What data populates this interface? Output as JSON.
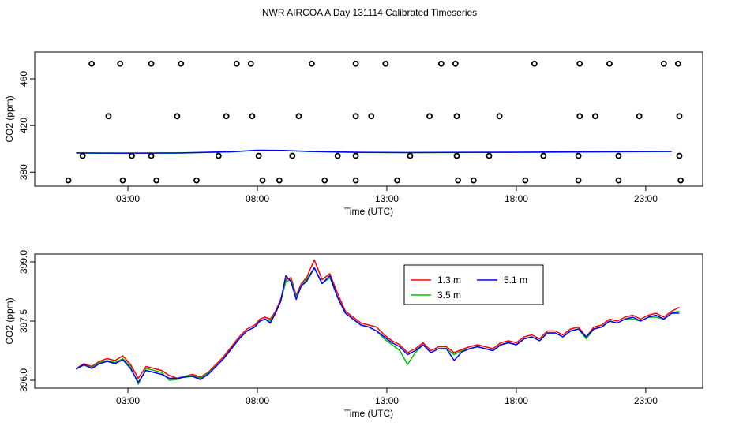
{
  "title": "NWR AIRCOA A  Day 131114  Calibrated Timeseries",
  "chart_data": [
    {
      "type": "scatter",
      "xlabel": "Time (UTC)",
      "ylabel": "CO2 (ppm)",
      "xlim": [
        -0.6,
        25.2
      ],
      "ylim": [
        368,
        483
      ],
      "x_ticks": [
        3,
        8,
        13,
        18,
        23
      ],
      "x_tick_labels": [
        "03:00",
        "08:00",
        "13:00",
        "18:00",
        "23:00"
      ],
      "y_ticks": [
        380,
        420,
        460
      ],
      "y_tick_labels": [
        "380",
        "420",
        "460"
      ],
      "grid": false,
      "scatter_points": {
        "x": [
          1.6,
          2.7,
          3.9,
          5.05,
          7.2,
          7.75,
          10.1,
          11.8,
          12.95,
          15.1,
          15.65,
          18.7,
          20.45,
          21.6,
          23.7,
          24.25,
          2.25,
          4.9,
          6.8,
          7.8,
          9.6,
          11.8,
          12.4,
          14.65,
          15.7,
          17.35,
          20.45,
          21.05,
          22.75,
          24.3,
          1.25,
          3.15,
          3.9,
          6.5,
          8.05,
          9.35,
          11.1,
          11.8,
          13.9,
          15.7,
          16.95,
          19.05,
          20.4,
          21.95,
          24.3,
          0.7,
          2.8,
          4.1,
          5.65,
          8.2,
          8.85,
          10.6,
          11.8,
          13.4,
          15.75,
          16.35,
          18.35,
          20.4,
          21.95,
          24.35
        ],
        "y": [
          473,
          473,
          473,
          473,
          473,
          473,
          473,
          473,
          473,
          473,
          473,
          473,
          473,
          473,
          473,
          473,
          428,
          428,
          428,
          428,
          428,
          428,
          428,
          428,
          428,
          428,
          428,
          428,
          428,
          428,
          394,
          394,
          394,
          394,
          394,
          394,
          394,
          394,
          394,
          394,
          394,
          394,
          394,
          394,
          394,
          373,
          373,
          373,
          373,
          373,
          373,
          373,
          373,
          373,
          373,
          373,
          373,
          373,
          373,
          373
        ]
      },
      "line_series": {
        "x": [
          1,
          3,
          5,
          7,
          8,
          9,
          10,
          12,
          14,
          16,
          18,
          20,
          22,
          24
        ],
        "y": [
          396.5,
          396.3,
          396.5,
          397.5,
          398.8,
          398.6,
          397.8,
          397.0,
          396.8,
          397.0,
          397.1,
          397.3,
          397.6,
          397.8
        ]
      }
    },
    {
      "type": "line",
      "xlabel": "Time (UTC)",
      "ylabel": "CO2 (ppm)",
      "xlim": [
        -0.6,
        25.2
      ],
      "ylim": [
        395.8,
        399.2
      ],
      "x_ticks": [
        3,
        8,
        13,
        18,
        23
      ],
      "x_tick_labels": [
        "03:00",
        "08:00",
        "13:00",
        "18:00",
        "23:00"
      ],
      "y_ticks": [
        396.0,
        397.5,
        399.0
      ],
      "y_tick_labels": [
        "396.0",
        "397.5",
        "399.0"
      ],
      "grid": false,
      "legend": "top-center",
      "x": [
        1.0,
        1.3,
        1.6,
        1.9,
        2.2,
        2.5,
        2.8,
        3.1,
        3.4,
        3.7,
        4.0,
        4.3,
        4.6,
        4.9,
        5.2,
        5.5,
        5.8,
        6.1,
        6.4,
        6.7,
        7.0,
        7.3,
        7.6,
        7.9,
        8.1,
        8.3,
        8.5,
        8.7,
        8.9,
        9.1,
        9.3,
        9.5,
        9.7,
        9.9,
        10.2,
        10.5,
        10.8,
        11.1,
        11.4,
        11.7,
        12.0,
        12.3,
        12.6,
        12.9,
        13.2,
        13.5,
        13.8,
        14.1,
        14.4,
        14.7,
        15.0,
        15.3,
        15.6,
        15.9,
        16.2,
        16.5,
        16.8,
        17.1,
        17.4,
        17.7,
        18.0,
        18.3,
        18.6,
        18.9,
        19.2,
        19.5,
        19.8,
        20.1,
        20.4,
        20.7,
        21.0,
        21.3,
        21.6,
        21.9,
        22.2,
        22.5,
        22.8,
        23.1,
        23.4,
        23.7,
        24.0,
        24.3
      ],
      "series": [
        {
          "name": "1.3 m",
          "color": "#ff0000",
          "values": [
            396.3,
            396.42,
            396.35,
            396.48,
            396.55,
            396.5,
            396.62,
            396.4,
            396.05,
            396.35,
            396.3,
            396.25,
            396.12,
            396.05,
            396.1,
            396.15,
            396.08,
            396.2,
            396.4,
            396.6,
            396.85,
            397.1,
            397.3,
            397.4,
            397.55,
            397.6,
            397.55,
            397.75,
            398.05,
            398.55,
            398.6,
            398.15,
            398.45,
            398.6,
            399.05,
            398.55,
            398.7,
            398.2,
            397.75,
            397.6,
            397.45,
            397.4,
            397.35,
            397.15,
            397.0,
            396.9,
            396.7,
            396.8,
            396.95,
            396.75,
            396.85,
            396.85,
            396.7,
            396.78,
            396.85,
            396.9,
            396.85,
            396.8,
            396.95,
            397.0,
            396.95,
            397.1,
            397.15,
            397.05,
            397.25,
            397.25,
            397.15,
            397.3,
            397.35,
            397.1,
            397.35,
            397.4,
            397.55,
            397.5,
            397.6,
            397.65,
            397.55,
            397.65,
            397.7,
            397.6,
            397.75,
            397.85
          ]
        },
        {
          "name": "3.5 m",
          "color": "#00c000",
          "values": [
            396.3,
            396.38,
            396.32,
            396.45,
            396.5,
            396.45,
            396.55,
            396.35,
            395.9,
            396.3,
            396.25,
            396.2,
            396.0,
            396.02,
            396.1,
            396.12,
            396.05,
            396.18,
            396.35,
            396.55,
            396.8,
            397.05,
            397.25,
            397.35,
            397.5,
            397.55,
            397.5,
            397.7,
            398.0,
            398.5,
            398.55,
            398.1,
            398.4,
            398.55,
            398.85,
            398.45,
            398.6,
            398.1,
            397.7,
            397.55,
            397.4,
            397.35,
            397.25,
            397.05,
            396.9,
            396.75,
            396.4,
            396.7,
            396.9,
            396.7,
            396.8,
            396.8,
            396.65,
            396.75,
            396.8,
            396.85,
            396.8,
            396.75,
            396.9,
            396.95,
            396.9,
            397.05,
            397.1,
            397.0,
            397.2,
            397.2,
            397.1,
            397.25,
            397.3,
            397.05,
            397.3,
            397.35,
            397.5,
            397.45,
            397.55,
            397.55,
            397.5,
            397.6,
            397.6,
            397.55,
            397.7,
            397.75
          ]
        },
        {
          "name": "5.1 m",
          "color": "#0000ff",
          "values": [
            396.28,
            396.4,
            396.3,
            396.42,
            396.48,
            396.42,
            396.52,
            396.3,
            395.95,
            396.25,
            396.2,
            396.15,
            396.05,
            396.05,
            396.08,
            396.1,
            396.02,
            396.15,
            396.35,
            396.55,
            396.8,
            397.05,
            397.25,
            397.35,
            397.5,
            397.55,
            397.45,
            397.7,
            398.0,
            398.65,
            398.5,
            398.05,
            398.4,
            398.5,
            398.85,
            398.45,
            398.65,
            398.1,
            397.7,
            397.55,
            397.4,
            397.35,
            397.25,
            397.1,
            396.95,
            396.85,
            396.65,
            396.75,
            396.9,
            396.7,
            396.8,
            396.8,
            396.5,
            396.72,
            396.8,
            396.85,
            396.8,
            396.75,
            396.9,
            396.95,
            396.9,
            397.05,
            397.1,
            397.0,
            397.2,
            397.2,
            397.1,
            397.25,
            397.3,
            397.1,
            397.3,
            397.35,
            397.5,
            397.45,
            397.55,
            397.6,
            397.5,
            397.6,
            397.65,
            397.55,
            397.7,
            397.7
          ]
        }
      ]
    }
  ]
}
